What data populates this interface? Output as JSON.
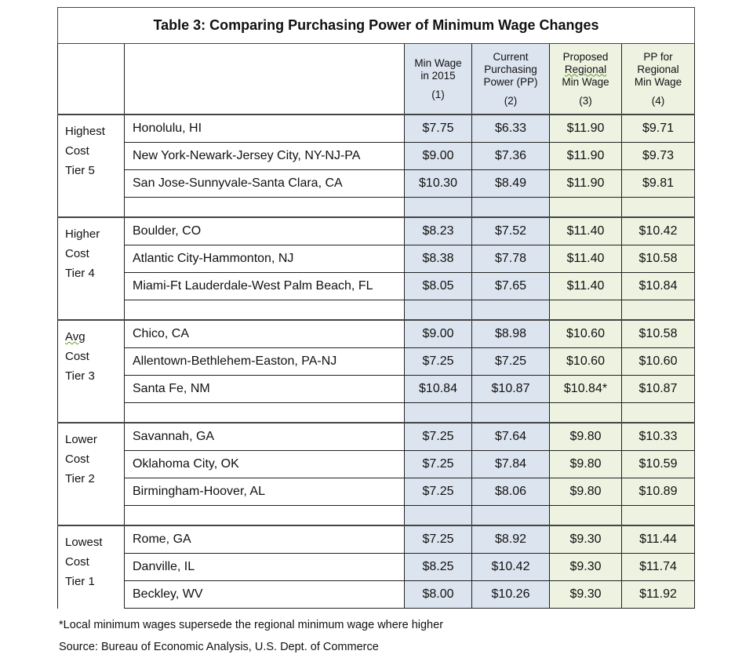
{
  "title": "Table 3: Comparing Purchasing Power of Minimum Wage Changes",
  "columns": [
    {
      "label": "Min Wage in 2015",
      "line1": "Min Wage",
      "line2": "in 2015",
      "line3": "",
      "num": "(1)"
    },
    {
      "label": "Current Purchasing Power (PP)",
      "line1": "Current",
      "line2": "Purchasing",
      "line3": "Power (PP)",
      "num": "(2)"
    },
    {
      "label": "Proposed Regional Min Wage",
      "line1": "Proposed",
      "line2": "Regional",
      "line3": "Min Wage",
      "num": "(3)"
    },
    {
      "label": "PP for Regional Min Wage",
      "line1": "PP for",
      "line2": "Regional",
      "line3": "Min Wage",
      "num": "(4)"
    }
  ],
  "tiers": [
    {
      "l1": "Highest",
      "l2": "Cost",
      "l3": "Tier 5",
      "rows": [
        {
          "city": "Honolulu, HI",
          "v": [
            "$7.75",
            "$6.33",
            "$11.90",
            "$9.71"
          ]
        },
        {
          "city": "New York-Newark-Jersey City, NY-NJ-PA",
          "v": [
            "$9.00",
            "$7.36",
            "$11.90",
            "$9.73"
          ]
        },
        {
          "city": "San Jose-Sunnyvale-Santa Clara, CA",
          "v": [
            "$10.30",
            "$8.49",
            "$11.90",
            "$9.81"
          ]
        }
      ]
    },
    {
      "l1": "Higher",
      "l2": "Cost",
      "l3": "Tier 4",
      "rows": [
        {
          "city": "Boulder, CO",
          "v": [
            "$8.23",
            "$7.52",
            "$11.40",
            "$10.42"
          ]
        },
        {
          "city": "Atlantic City-Hammonton, NJ",
          "v": [
            "$8.38",
            "$7.78",
            "$11.40",
            "$10.58"
          ]
        },
        {
          "city": "Miami-Ft Lauderdale-West Palm Beach, FL",
          "v": [
            "$8.05",
            "$7.65",
            "$11.40",
            "$10.84"
          ]
        }
      ]
    },
    {
      "l1": "Avg",
      "l2": "Cost",
      "l3": "Tier 3",
      "rows": [
        {
          "city": "Chico, CA",
          "v": [
            "$9.00",
            "$8.98",
            "$10.60",
            "$10.58"
          ]
        },
        {
          "city": "Allentown-Bethlehem-Easton, PA-NJ",
          "v": [
            "$7.25",
            "$7.25",
            "$10.60",
            "$10.60"
          ]
        },
        {
          "city": "Santa Fe, NM",
          "v": [
            "$10.84",
            "$10.87",
            "$10.84*",
            "$10.87"
          ]
        }
      ]
    },
    {
      "l1": "Lower",
      "l2": "Cost",
      "l3": "Tier 2",
      "rows": [
        {
          "city": "Savannah, GA",
          "v": [
            "$7.25",
            "$7.64",
            "$9.80",
            "$10.33"
          ]
        },
        {
          "city": "Oklahoma City, OK",
          "v": [
            "$7.25",
            "$7.84",
            "$9.80",
            "$10.59"
          ]
        },
        {
          "city": "Birmingham-Hoover, AL",
          "v": [
            "$7.25",
            "$8.06",
            "$9.80",
            "$10.89"
          ]
        }
      ]
    },
    {
      "l1": "Lowest",
      "l2": "Cost",
      "l3": "Tier 1",
      "rows": [
        {
          "city": "Rome, GA",
          "v": [
            "$7.25",
            "$8.92",
            "$9.30",
            "$11.44"
          ]
        },
        {
          "city": "Danville, IL",
          "v": [
            "$8.25",
            "$10.42",
            "$9.30",
            "$11.74"
          ]
        },
        {
          "city": "Beckley, WV",
          "v": [
            "$8.00",
            "$10.26",
            "$9.30",
            "$11.92"
          ]
        }
      ]
    }
  ],
  "footnote": "*Local minimum wages supersede the regional minimum wage where higher",
  "source": "Source: Bureau of Economic Analysis, U.S. Dept. of Commerce",
  "colors": {
    "blue_cols": "#dce4ef",
    "green_cols": "#edf2e1",
    "border": "#222222"
  }
}
